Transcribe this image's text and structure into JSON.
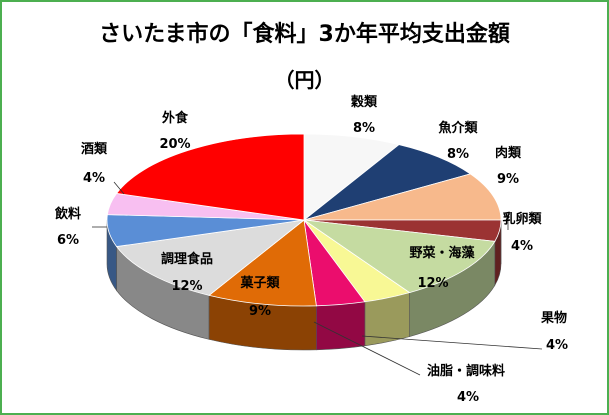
{
  "chart_data": {
    "type": "pie",
    "style": "3d",
    "title": "さいたま市の「食料」3か年平均支出金額",
    "subtitle": "（円）",
    "unit": "%",
    "categories": [
      "穀類",
      "魚介類",
      "肉類",
      "乳卵類",
      "野菜・海藻",
      "果物",
      "油脂・調味料",
      "菓子類",
      "調理食品",
      "飲料",
      "酒類",
      "外食"
    ],
    "values": [
      8,
      8,
      9,
      4,
      12,
      4,
      4,
      9,
      12,
      6,
      4,
      20
    ],
    "value_labels": [
      "8%",
      "8%",
      "9%",
      "4%",
      "12%",
      "4%",
      "4%",
      "9%",
      "12%",
      "6%",
      "4%",
      "20%"
    ],
    "colors": [
      "#f7f7f7",
      "#1f3f73",
      "#f7b98c",
      "#9b3333",
      "#c5dba1",
      "#f8f895",
      "#eb0d6d",
      "#e06b06",
      "#dcdcdc",
      "#5a8ed6",
      "#f8bff1",
      "#ff0000"
    ],
    "legend": "none"
  }
}
